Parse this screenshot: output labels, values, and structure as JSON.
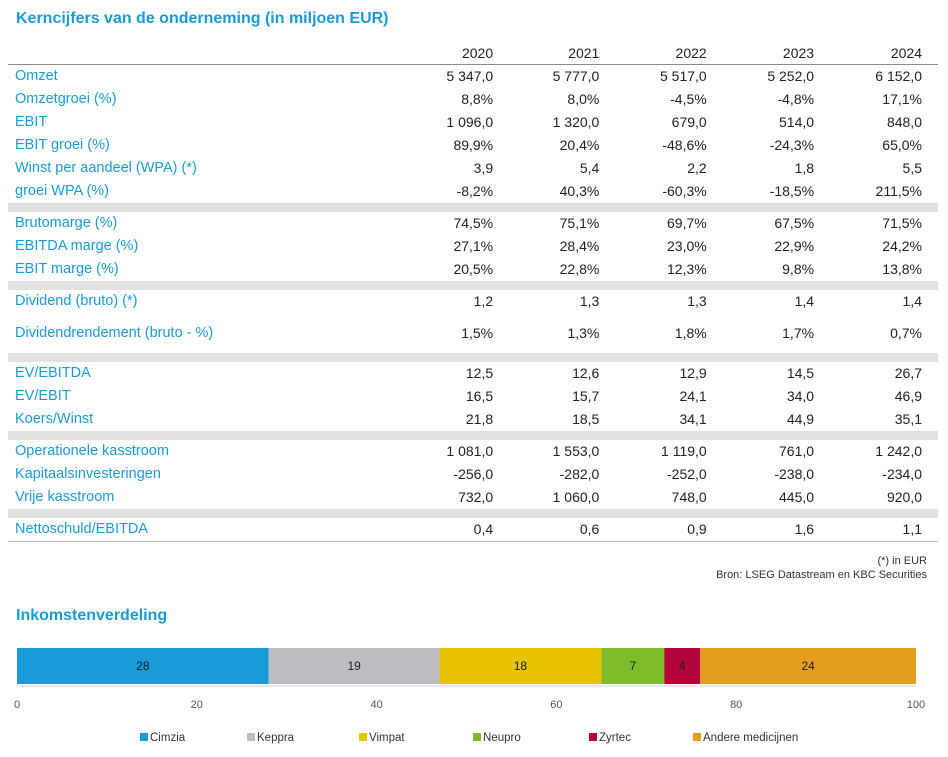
{
  "title": "Kerncijfers van de onderneming (in miljoen EUR)",
  "years": [
    "2020",
    "2021",
    "2022",
    "2023",
    "2024"
  ],
  "rows": [
    {
      "label": "Omzet",
      "values": [
        "5 347,0",
        "5 777,0",
        "5 517,0",
        "5 252,0",
        "6 152,0"
      ]
    },
    {
      "label": "Omzetgroei (%)",
      "values": [
        "8,8%",
        "8,0%",
        "-4,5%",
        "-4,8%",
        "17,1%"
      ]
    },
    {
      "label": "EBIT",
      "values": [
        "1 096,0",
        "1 320,0",
        "679,0",
        "514,0",
        "848,0"
      ]
    },
    {
      "label": "EBIT groei (%)",
      "values": [
        "89,9%",
        "20,4%",
        "-48,6%",
        "-24,3%",
        "65,0%"
      ]
    },
    {
      "label": "Winst per aandeel (WPA) (*)",
      "values": [
        "3,9",
        "5,4",
        "2,2",
        "1,8",
        "5,5"
      ]
    },
    {
      "label": "groei WPA (%)",
      "values": [
        "-8,2%",
        "40,3%",
        "-60,3%",
        "-18,5%",
        "211,5%"
      ]
    },
    {
      "label": "Brutomarge (%)",
      "values": [
        "74,5%",
        "75,1%",
        "69,7%",
        "67,5%",
        "71,5%"
      ]
    },
    {
      "label": "EBITDA marge (%)",
      "values": [
        "27,1%",
        "28,4%",
        "23,0%",
        "22,9%",
        "24,2%"
      ]
    },
    {
      "label": "EBIT marge (%)",
      "values": [
        "20,5%",
        "22,8%",
        "12,3%",
        "9,8%",
        "13,8%"
      ]
    },
    {
      "label": "Dividend (bruto) (*)",
      "values": [
        "1,2",
        "1,3",
        "1,3",
        "1,4",
        "1,4"
      ]
    },
    {
      "label": "Dividendrendement (bruto - %)",
      "values": [
        "1,5%",
        "1,3%",
        "1,8%",
        "1,7%",
        "0,7%"
      ]
    },
    {
      "label": "EV/EBITDA",
      "values": [
        "12,5",
        "12,6",
        "12,9",
        "14,5",
        "26,7"
      ]
    },
    {
      "label": "EV/EBIT",
      "values": [
        "16,5",
        "15,7",
        "24,1",
        "34,0",
        "46,9"
      ]
    },
    {
      "label": "Koers/Winst",
      "values": [
        "21,8",
        "18,5",
        "34,1",
        "44,9",
        "35,1"
      ]
    },
    {
      "label": "Operationele kasstroom",
      "values": [
        "1 081,0",
        "1 553,0",
        "1 119,0",
        "761,0",
        "1 242,0"
      ]
    },
    {
      "label": "Kapitaalsinvesteringen",
      "values": [
        "-256,0",
        "-282,0",
        "-252,0",
        "-238,0",
        "-234,0"
      ]
    },
    {
      "label": "Vrije kasstroom",
      "values": [
        "732,0",
        "1 060,0",
        "748,0",
        "445,0",
        "920,0"
      ]
    },
    {
      "label": "Nettoschuld/EBITDA",
      "values": [
        "0,4",
        "0,6",
        "0,9",
        "1,6",
        "1,1"
      ]
    }
  ],
  "footnote": "(*) in EUR",
  "source": "Bron: LSEG Datastream en KBC Securities",
  "chart_title": "Inkomstenverdeling",
  "chart_data": {
    "type": "bar",
    "orientation": "horizontal-stacked",
    "title": "Inkomstenverdeling",
    "series": [
      {
        "name": "Cimzia",
        "value": 28,
        "color": "#1a9bd7"
      },
      {
        "name": "Keppra",
        "value": 19,
        "color": "#bdbdc3"
      },
      {
        "name": "Vimpat",
        "value": 18,
        "color": "#e6c400"
      },
      {
        "name": "Neupro",
        "value": 7,
        "color": "#7cbd2a"
      },
      {
        "name": "Zyrtec",
        "value": 4,
        "color": "#b3053a"
      },
      {
        "name": "Andere medicijnen",
        "value": 24,
        "color": "#e59d1c"
      }
    ],
    "xlim": [
      0,
      100
    ],
    "xticks": [
      0,
      20,
      40,
      60,
      80,
      100
    ],
    "grid": false,
    "legend": "bottom"
  }
}
